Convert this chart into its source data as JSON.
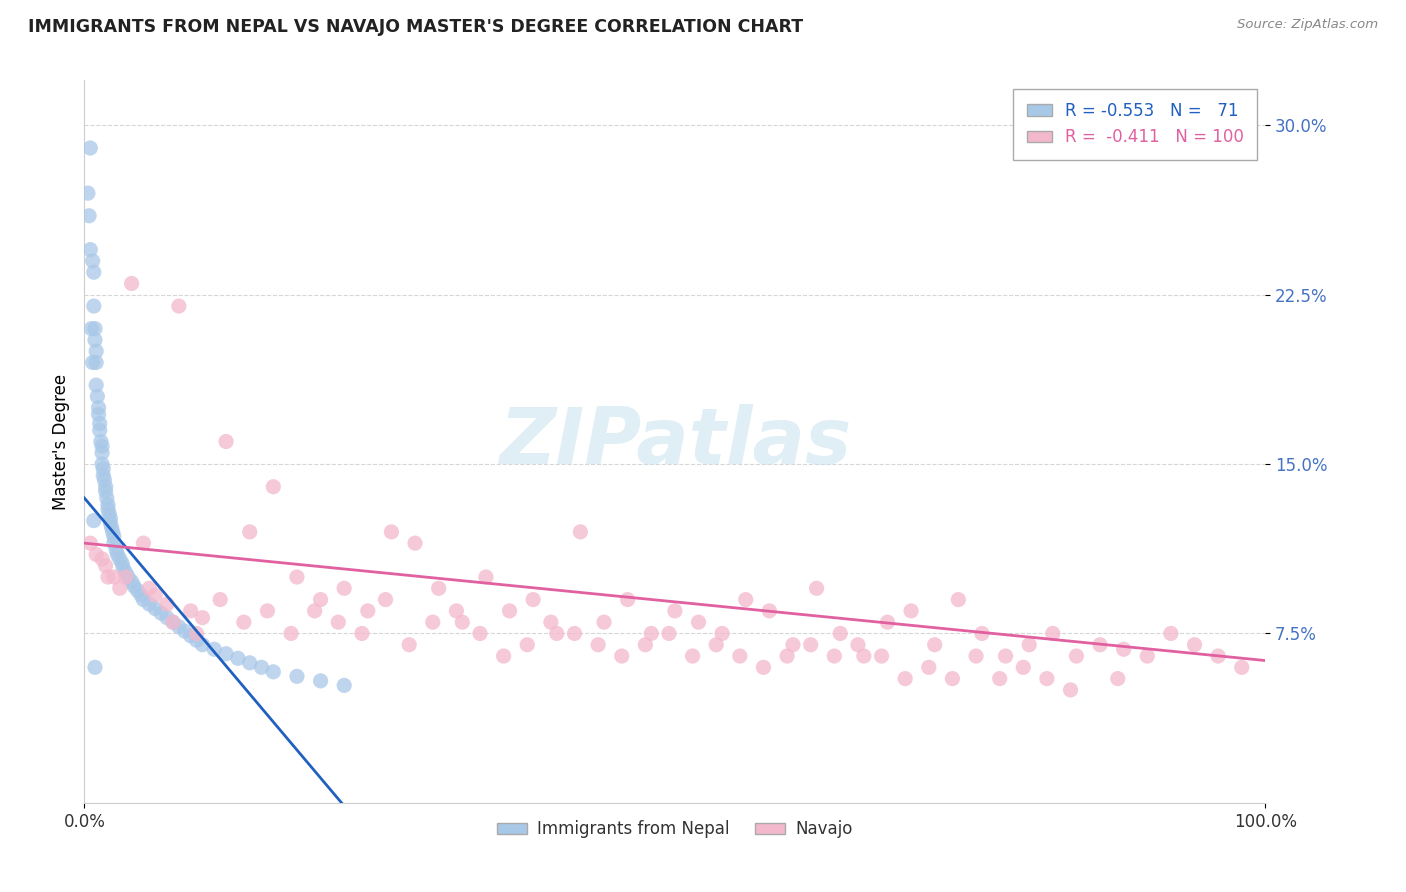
{
  "title": "IMMIGRANTS FROM NEPAL VS NAVAJO MASTER'S DEGREE CORRELATION CHART",
  "source": "Source: ZipAtlas.com",
  "ylabel": "Master's Degree",
  "xlim": [
    0.0,
    1.0
  ],
  "ylim": [
    0.0,
    0.32
  ],
  "ytick_labels": [
    "7.5%",
    "15.0%",
    "22.5%",
    "30.0%"
  ],
  "ytick_values": [
    0.075,
    0.15,
    0.225,
    0.3
  ],
  "nepal_color": "#a8c8e8",
  "navajo_color": "#f4b8cc",
  "nepal_line_color": "#2060c0",
  "navajo_line_color": "#e060a0",
  "background_color": "#ffffff",
  "grid_color": "#cccccc",
  "nepal_scatter_x": [
    0.005,
    0.005,
    0.007,
    0.008,
    0.008,
    0.009,
    0.009,
    0.01,
    0.01,
    0.01,
    0.011,
    0.012,
    0.012,
    0.013,
    0.013,
    0.014,
    0.015,
    0.015,
    0.015,
    0.016,
    0.016,
    0.017,
    0.018,
    0.018,
    0.019,
    0.02,
    0.02,
    0.021,
    0.022,
    0.022,
    0.023,
    0.024,
    0.025,
    0.025,
    0.027,
    0.028,
    0.03,
    0.032,
    0.033,
    0.035,
    0.037,
    0.04,
    0.042,
    0.045,
    0.048,
    0.05,
    0.055,
    0.06,
    0.065,
    0.07,
    0.075,
    0.08,
    0.085,
    0.09,
    0.095,
    0.1,
    0.11,
    0.12,
    0.13,
    0.14,
    0.15,
    0.16,
    0.18,
    0.2,
    0.22,
    0.003,
    0.004,
    0.006,
    0.007,
    0.008,
    0.009
  ],
  "nepal_scatter_y": [
    0.29,
    0.245,
    0.24,
    0.235,
    0.22,
    0.21,
    0.205,
    0.2,
    0.195,
    0.185,
    0.18,
    0.175,
    0.172,
    0.168,
    0.165,
    0.16,
    0.158,
    0.155,
    0.15,
    0.148,
    0.145,
    0.143,
    0.14,
    0.138,
    0.135,
    0.132,
    0.13,
    0.128,
    0.126,
    0.124,
    0.122,
    0.12,
    0.118,
    0.115,
    0.112,
    0.11,
    0.108,
    0.106,
    0.104,
    0.102,
    0.1,
    0.098,
    0.096,
    0.094,
    0.092,
    0.09,
    0.088,
    0.086,
    0.084,
    0.082,
    0.08,
    0.078,
    0.076,
    0.074,
    0.072,
    0.07,
    0.068,
    0.066,
    0.064,
    0.062,
    0.06,
    0.058,
    0.056,
    0.054,
    0.052,
    0.27,
    0.26,
    0.21,
    0.195,
    0.125,
    0.06
  ],
  "navajo_scatter_x": [
    0.005,
    0.01,
    0.015,
    0.018,
    0.02,
    0.025,
    0.03,
    0.04,
    0.05,
    0.06,
    0.07,
    0.08,
    0.09,
    0.1,
    0.12,
    0.14,
    0.16,
    0.18,
    0.2,
    0.22,
    0.24,
    0.26,
    0.28,
    0.3,
    0.32,
    0.34,
    0.36,
    0.38,
    0.4,
    0.42,
    0.44,
    0.46,
    0.48,
    0.5,
    0.52,
    0.54,
    0.56,
    0.58,
    0.6,
    0.62,
    0.64,
    0.66,
    0.68,
    0.7,
    0.72,
    0.74,
    0.76,
    0.78,
    0.8,
    0.82,
    0.84,
    0.86,
    0.88,
    0.9,
    0.92,
    0.94,
    0.96,
    0.98,
    0.035,
    0.055,
    0.075,
    0.095,
    0.115,
    0.135,
    0.155,
    0.175,
    0.195,
    0.215,
    0.235,
    0.255,
    0.275,
    0.295,
    0.315,
    0.335,
    0.355,
    0.375,
    0.395,
    0.415,
    0.435,
    0.455,
    0.475,
    0.495,
    0.515,
    0.535,
    0.555,
    0.575,
    0.595,
    0.615,
    0.635,
    0.655,
    0.675,
    0.695,
    0.715,
    0.735,
    0.755,
    0.775,
    0.795,
    0.815,
    0.835,
    0.875
  ],
  "navajo_scatter_y": [
    0.115,
    0.11,
    0.108,
    0.105,
    0.1,
    0.1,
    0.095,
    0.23,
    0.115,
    0.092,
    0.088,
    0.22,
    0.085,
    0.082,
    0.16,
    0.12,
    0.14,
    0.1,
    0.09,
    0.095,
    0.085,
    0.12,
    0.115,
    0.095,
    0.08,
    0.1,
    0.085,
    0.09,
    0.075,
    0.12,
    0.08,
    0.09,
    0.075,
    0.085,
    0.08,
    0.075,
    0.09,
    0.085,
    0.07,
    0.095,
    0.075,
    0.065,
    0.08,
    0.085,
    0.07,
    0.09,
    0.075,
    0.065,
    0.07,
    0.075,
    0.065,
    0.07,
    0.068,
    0.065,
    0.075,
    0.07,
    0.065,
    0.06,
    0.1,
    0.095,
    0.08,
    0.075,
    0.09,
    0.08,
    0.085,
    0.075,
    0.085,
    0.08,
    0.075,
    0.09,
    0.07,
    0.08,
    0.085,
    0.075,
    0.065,
    0.07,
    0.08,
    0.075,
    0.07,
    0.065,
    0.07,
    0.075,
    0.065,
    0.07,
    0.065,
    0.06,
    0.065,
    0.07,
    0.065,
    0.07,
    0.065,
    0.055,
    0.06,
    0.055,
    0.065,
    0.055,
    0.06,
    0.055,
    0.05,
    0.055
  ],
  "nepal_line_x": [
    0.0,
    0.22
  ],
  "nepal_line_y_start": 0.135,
  "nepal_line_y_end": 0.0,
  "navajo_line_x": [
    0.0,
    1.0
  ],
  "navajo_line_y_start": 0.115,
  "navajo_line_y_end": 0.06,
  "legend1_label": "R = -0.553   N =   71",
  "legend2_label": "R =  -0.411   N = 100",
  "bottom_legend1": "Immigrants from Nepal",
  "bottom_legend2": "Navajo"
}
